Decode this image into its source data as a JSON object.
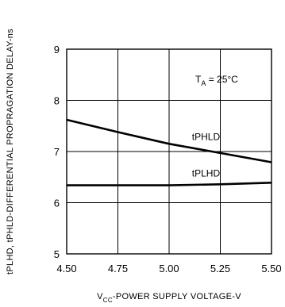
{
  "chart_data": {
    "type": "line",
    "title": "",
    "xlabel": {
      "prefix": "V",
      "subscript": "CC",
      "suffix": "-POWER SUPPLY VOLTAGE-V"
    },
    "ylabel": "tPLHD, tPHLD-DIFFERENTIAL PROPRAGATION DELAY-ns",
    "xlim": [
      4.5,
      5.5
    ],
    "ylim": [
      5,
      9
    ],
    "x_ticks": [
      4.5,
      4.75,
      5.0,
      5.25,
      5.5
    ],
    "x_tick_labels": [
      "4.50",
      "4.75",
      "5.00",
      "5.25",
      "5.50"
    ],
    "y_ticks": [
      5,
      6,
      7,
      8,
      9
    ],
    "y_tick_labels": [
      "5",
      "6",
      "7",
      "8",
      "9"
    ],
    "grid": true,
    "series": [
      {
        "name": "tPHLD",
        "x": [
          4.5,
          4.75,
          5.0,
          5.25,
          5.5
        ],
        "y": [
          7.62,
          7.38,
          7.15,
          6.97,
          6.79
        ]
      },
      {
        "name": "tPLHD",
        "x": [
          4.5,
          4.75,
          5.0,
          5.25,
          5.5
        ],
        "y": [
          6.34,
          6.34,
          6.34,
          6.36,
          6.39
        ]
      }
    ],
    "annotation": {
      "prefix": "T",
      "subscript": "A",
      "suffix": " = 25°C"
    },
    "colors": {
      "line": "#000000",
      "grid": "#000000"
    }
  }
}
